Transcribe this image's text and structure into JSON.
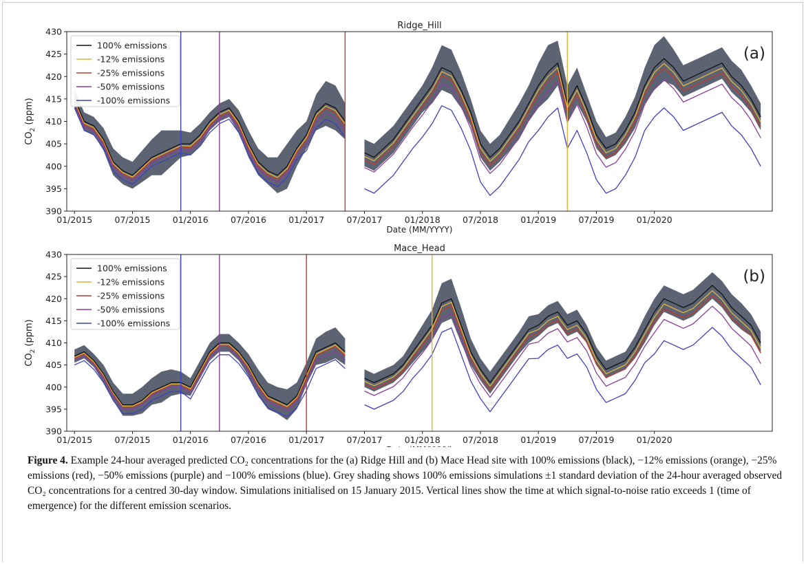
{
  "figure": {
    "caption_label": "Figure 4.",
    "caption_text": "Example 24-hour averaged predicted CO₂ concentrations for the (a) Ridge Hill and (b) Mace Head site with 100% emissions (black), −12% emissions (orange), −25% emissions (red), −50% emissions (purple) and −100% emissions (blue). Grey shading shows 100% emissions simulations ±1 standard deviation of the 24-hour averaged observed CO₂ concentrations for a centred 30-day window. Simulations initialised on 15 January 2015. Vertical lines show the time at which signal-to-noise ratio exceeds 1 (time of emergence) for the different emission scenarios."
  },
  "colors": {
    "band": "#5c6473",
    "s100": "#111111",
    "s12": "#e0b43a",
    "s25": "#c03a30",
    "s50": "#8a3e98",
    "s100neg": "#3f3fc2"
  },
  "chart_data": [
    {
      "type": "line",
      "panel_label": "(a)",
      "title": "Ridge_Hill",
      "xlabel": "Date (MM/YYYY)",
      "ylabel": "CO2 (ppm)",
      "ylim": [
        390,
        430
      ],
      "yticks": [
        390,
        395,
        400,
        405,
        410,
        415,
        420,
        425,
        430
      ],
      "xticks": [
        "01/2015",
        "07/2015",
        "01/2016",
        "07/2016",
        "01/2017",
        "07/2017",
        "01/2018",
        "07/2018",
        "01/2019",
        "07/2019",
        "01/2020"
      ],
      "legend": [
        "100% emissions",
        "-12% emissions",
        "-25% emissions",
        "-50% emissions",
        "-100% emissions"
      ],
      "legend_position": "top-left",
      "grid": false,
      "gap": [
        "2017-06",
        "2017-07"
      ],
      "vlines": [
        {
          "series": "-100% emissions",
          "date": "2015-12"
        },
        {
          "series": "-50% emissions",
          "date": "2016-04"
        },
        {
          "series": "-25% emissions",
          "date": "2017-05"
        },
        {
          "series": "-12% emissions",
          "date": "2019-04"
        }
      ],
      "x": [
        "2015-01",
        "2015-02",
        "2015-03",
        "2015-04",
        "2015-05",
        "2015-06",
        "2015-07",
        "2015-08",
        "2015-09",
        "2015-10",
        "2015-11",
        "2015-12",
        "2016-01",
        "2016-02",
        "2016-03",
        "2016-04",
        "2016-05",
        "2016-06",
        "2016-07",
        "2016-08",
        "2016-09",
        "2016-10",
        "2016-11",
        "2016-12",
        "2017-01",
        "2017-02",
        "2017-03",
        "2017-04",
        "2017-05",
        "2017-07",
        "2017-08",
        "2017-09",
        "2017-10",
        "2017-11",
        "2017-12",
        "2018-01",
        "2018-02",
        "2018-03",
        "2018-04",
        "2018-05",
        "2018-06",
        "2018-07",
        "2018-08",
        "2018-09",
        "2018-10",
        "2018-11",
        "2018-12",
        "2019-01",
        "2019-02",
        "2019-03",
        "2019-04",
        "2019-05",
        "2019-06",
        "2019-07",
        "2019-08",
        "2019-09",
        "2019-10",
        "2019-11",
        "2019-12",
        "2020-01",
        "2020-02",
        "2020-03",
        "2020-04",
        "2020-05",
        "2020-06",
        "2020-07",
        "2020-08",
        "2020-09",
        "2020-10",
        "2020-11",
        "2020-12"
      ],
      "series_y": {
        "100% emissions": [
          415,
          410,
          409,
          406,
          401,
          399,
          398,
          400,
          402,
          403,
          404,
          405,
          405,
          407,
          410,
          412,
          413,
          410,
          405,
          401,
          399,
          398,
          400,
          404,
          407,
          412,
          414,
          413,
          410,
          403,
          402,
          404,
          406,
          409,
          412,
          415,
          418,
          422,
          421,
          417,
          412,
          405,
          402,
          404,
          407,
          410,
          414,
          418,
          421,
          423,
          414,
          418,
          413,
          407,
          404,
          405,
          408,
          412,
          418,
          422,
          424,
          422,
          419,
          420,
          421,
          422,
          423,
          420,
          418,
          415,
          411
        ],
        "-12% emissions": [
          414.6,
          409.6,
          408.6,
          405.6,
          400.6,
          398.6,
          397.6,
          399.6,
          401.6,
          402.6,
          403.6,
          404.6,
          404.5,
          406.5,
          409.5,
          411.5,
          412.5,
          409.5,
          404.5,
          400.5,
          398.5,
          397.5,
          399.5,
          403.5,
          406.4,
          411.4,
          413.4,
          412.4,
          409.4,
          402.2,
          401.2,
          403.2,
          405.2,
          408.2,
          411.2,
          414.1,
          417.1,
          421.1,
          420.1,
          416.1,
          411.1,
          404.1,
          401.1,
          403.1,
          406.1,
          409.1,
          413.1,
          417,
          420,
          422,
          413,
          417,
          412,
          406,
          403,
          404,
          407,
          411,
          417,
          420.9,
          422.9,
          420.9,
          417.9,
          418.9,
          419.9,
          420.9,
          421.9,
          418.9,
          416.9,
          413.9,
          409.9
        ],
        "-25% emissions": [
          414.3,
          409.3,
          408.3,
          405.3,
          400.3,
          398.3,
          397.3,
          399.3,
          401.3,
          402.3,
          403.3,
          404.3,
          404.1,
          406.1,
          409.1,
          411.1,
          412.1,
          409.1,
          404.1,
          400.1,
          398.1,
          397.1,
          399.1,
          403.1,
          405.9,
          410.9,
          412.9,
          411.9,
          408.9,
          401.4,
          400.4,
          402.4,
          404.4,
          407.4,
          410.4,
          413.2,
          416.2,
          420.2,
          419.2,
          415.2,
          410.2,
          403.2,
          400.2,
          402.2,
          405.2,
          408.2,
          412.2,
          416,
          419,
          421,
          412,
          416,
          411,
          405,
          402,
          403,
          406,
          410,
          416,
          419.8,
          421.8,
          419.8,
          416.8,
          417.8,
          418.8,
          419.8,
          420.8,
          417.8,
          415.8,
          412.8,
          408.8
        ],
        "-50% emissions": [
          413.8,
          408.8,
          407.8,
          404.8,
          399.8,
          397.8,
          396.8,
          398.8,
          400.8,
          401.8,
          402.8,
          403.8,
          403.5,
          405.5,
          408.5,
          410.5,
          411.5,
          408.5,
          403.5,
          399.5,
          397.5,
          396.5,
          398.5,
          402.5,
          404.8,
          409.8,
          411.8,
          410.8,
          407.8,
          399.7,
          398.7,
          400.7,
          402.7,
          405.7,
          408.7,
          411.4,
          414.4,
          418.4,
          417.4,
          413.4,
          408.4,
          401.4,
          398.4,
          400.4,
          403.4,
          406.4,
          410.4,
          413.8,
          416.8,
          418.8,
          409.8,
          413.8,
          408.8,
          402.8,
          399.8,
          400.8,
          403.8,
          407.8,
          413.8,
          417.3,
          419.3,
          417.3,
          414.3,
          415.3,
          416.3,
          417.3,
          418.3,
          415.3,
          413.3,
          410.3,
          406.3
        ],
        "-100% emissions": [
          413,
          408,
          407,
          404,
          399,
          397,
          396,
          398,
          400,
          401,
          402,
          403,
          402.5,
          404.5,
          407.5,
          409.5,
          410.5,
          407.5,
          402.5,
          398.5,
          396.5,
          395.5,
          397.5,
          401.5,
          403.5,
          408.5,
          410.5,
          409.5,
          406.5,
          395,
          394,
          396,
          398,
          401,
          404,
          406.5,
          409.5,
          413.5,
          412.5,
          408.5,
          403.5,
          396.5,
          393.5,
          395.5,
          398.5,
          401.5,
          405.5,
          408,
          411,
          413,
          404,
          408,
          403,
          397,
          394,
          395,
          398,
          402,
          408,
          411,
          413,
          411,
          408,
          409,
          410,
          411,
          412,
          409,
          407,
          404,
          400
        ]
      },
      "band_halfwidth_ppm": [
        2,
        2,
        2,
        2.5,
        3,
        3,
        3,
        3.5,
        4,
        5,
        4,
        3,
        2.5,
        2.5,
        2,
        2,
        2,
        2.5,
        3,
        3,
        3,
        4,
        5,
        4,
        3,
        4,
        5,
        5,
        4,
        3,
        3,
        3,
        3,
        3,
        3,
        3,
        4,
        5,
        5,
        4,
        3,
        3,
        3,
        3,
        3.5,
        4,
        4,
        5,
        6,
        5,
        4,
        4,
        3,
        3,
        2.5,
        2.5,
        3,
        3.5,
        4,
        5,
        5,
        4,
        3.5,
        3.5,
        3.5,
        3.5,
        3.5,
        3.5,
        3.5,
        3,
        3
      ]
    },
    {
      "type": "line",
      "panel_label": "(b)",
      "title": "Mace_Head",
      "xlabel": "Date (MM/YYYY)",
      "ylabel": "CO2 (ppm)",
      "ylim": [
        390,
        430
      ],
      "yticks": [
        390,
        395,
        400,
        405,
        410,
        415,
        420,
        425,
        430
      ],
      "xticks": [
        "01/2015",
        "07/2015",
        "01/2016",
        "07/2016",
        "01/2017",
        "07/2017",
        "01/2018",
        "07/2018",
        "01/2019",
        "07/2019",
        "01/2020"
      ],
      "legend": [
        "100% emissions",
        "-12% emissions",
        "-25% emissions",
        "-50% emissions",
        "-100% emissions"
      ],
      "legend_position": "top-left",
      "grid": false,
      "gap": [
        "2017-06",
        "2017-07"
      ],
      "vlines": [
        {
          "series": "-100% emissions",
          "date": "2015-12"
        },
        {
          "series": "-50% emissions",
          "date": "2016-04"
        },
        {
          "series": "-25% emissions",
          "date": "2017-01"
        },
        {
          "series": "-12% emissions",
          "date": "2018-02"
        }
      ],
      "x": [
        "2015-01",
        "2015-02",
        "2015-03",
        "2015-04",
        "2015-05",
        "2015-06",
        "2015-07",
        "2015-08",
        "2015-09",
        "2015-10",
        "2015-11",
        "2015-12",
        "2016-01",
        "2016-02",
        "2016-03",
        "2016-04",
        "2016-05",
        "2016-06",
        "2016-07",
        "2016-08",
        "2016-09",
        "2016-10",
        "2016-11",
        "2016-12",
        "2017-01",
        "2017-02",
        "2017-03",
        "2017-04",
        "2017-05",
        "2017-07",
        "2017-08",
        "2017-09",
        "2017-10",
        "2017-11",
        "2017-12",
        "2018-01",
        "2018-02",
        "2018-03",
        "2018-04",
        "2018-05",
        "2018-06",
        "2018-07",
        "2018-08",
        "2018-09",
        "2018-10",
        "2018-11",
        "2018-12",
        "2019-01",
        "2019-02",
        "2019-03",
        "2019-04",
        "2019-05",
        "2019-06",
        "2019-07",
        "2019-08",
        "2019-09",
        "2019-10",
        "2019-11",
        "2019-12",
        "2020-01",
        "2020-02",
        "2020-03",
        "2020-04",
        "2020-05",
        "2020-06",
        "2020-07",
        "2020-08",
        "2020-09",
        "2020-10",
        "2020-11",
        "2020-12"
      ],
      "series_y": {
        "100% emissions": [
          407,
          408,
          406,
          403,
          399,
          396,
          396,
          397,
          399,
          400,
          401,
          401,
          400,
          404,
          408,
          410,
          410,
          408,
          405,
          401,
          398,
          397,
          396,
          398,
          403,
          408,
          409,
          410,
          408,
          402,
          401,
          402,
          403,
          405,
          408,
          411,
          414,
          419,
          420,
          414,
          408,
          404,
          401,
          404,
          407,
          410,
          413,
          414,
          416,
          417,
          414,
          415,
          412,
          407,
          404,
          405,
          406,
          409,
          413,
          417,
          420,
          419,
          418,
          419,
          421,
          423,
          421,
          418,
          416,
          414,
          410
        ],
        "-12% emissions": [
          406.7,
          407.7,
          405.7,
          402.7,
          398.7,
          395.7,
          395.7,
          396.7,
          398.7,
          399.7,
          400.7,
          400.7,
          399.6,
          403.6,
          407.6,
          409.6,
          409.6,
          407.6,
          404.6,
          400.6,
          397.6,
          396.6,
          395.6,
          397.6,
          402.5,
          407.5,
          408.5,
          409.5,
          407.5,
          401.3,
          400.3,
          401.3,
          402.3,
          404.3,
          407.3,
          410.2,
          413.2,
          418.2,
          419.2,
          413.2,
          407.2,
          403.2,
          400.2,
          403.2,
          406.2,
          409.2,
          412.2,
          413,
          415,
          416,
          413,
          414,
          411,
          406,
          403,
          404,
          405,
          408,
          412,
          415.8,
          418.8,
          417.8,
          416.8,
          417.8,
          419.8,
          421.8,
          419.8,
          416.8,
          414.8,
          412.8,
          408.8
        ],
        "-25% emissions": [
          406.5,
          407.5,
          405.5,
          402.5,
          398.5,
          395.5,
          395.5,
          396.5,
          398.5,
          399.5,
          400.5,
          400.5,
          399.3,
          403.3,
          407.3,
          409.3,
          409.3,
          407.3,
          404.3,
          400.3,
          397.3,
          396.3,
          395.3,
          397.3,
          402.1,
          407.1,
          408.1,
          409.1,
          407.1,
          400.6,
          399.6,
          400.6,
          401.6,
          403.6,
          406.6,
          409.4,
          412.4,
          417.4,
          418.4,
          412.4,
          406.4,
          402.4,
          399.4,
          402.4,
          405.4,
          408.4,
          411.4,
          412.1,
          414.1,
          415.1,
          412.1,
          413.1,
          410.1,
          405.1,
          402.1,
          403.1,
          404.1,
          407.1,
          411.1,
          414.7,
          417.7,
          416.7,
          415.7,
          416.7,
          418.7,
          420.7,
          418.7,
          415.7,
          413.7,
          411.7,
          407.7
        ],
        "-50% emissions": [
          406,
          407,
          405,
          402,
          398,
          395,
          395,
          396,
          398,
          399,
          400,
          400,
          398.6,
          402.6,
          406.6,
          408.6,
          408.6,
          406.6,
          403.6,
          399.6,
          396.6,
          395.6,
          394.6,
          396.6,
          401.1,
          406.1,
          407.1,
          408.1,
          406.1,
          399.1,
          398.1,
          399.1,
          400.1,
          402.1,
          405.1,
          407.7,
          410.7,
          415.7,
          416.7,
          410.7,
          404.7,
          400.7,
          397.7,
          400.7,
          403.7,
          406.7,
          409.7,
          410.2,
          412.2,
          413.2,
          410.2,
          411.2,
          408.2,
          403.2,
          400.2,
          401.2,
          402.2,
          405.2,
          409.2,
          412.3,
          415.3,
          414.3,
          413.3,
          414.3,
          416.3,
          418.3,
          416.3,
          413.3,
          411.3,
          409.3,
          405.3
        ],
        "-100% emissions": [
          405,
          406,
          404,
          401,
          397,
          394,
          394,
          395,
          397,
          398,
          399,
          399,
          397.3,
          401.3,
          405.3,
          407.3,
          407.3,
          405.3,
          402.3,
          398.3,
          395.3,
          394.3,
          393.3,
          395.3,
          399.2,
          404.2,
          405.2,
          406.2,
          404.2,
          396,
          395,
          396,
          397,
          399,
          402,
          404.4,
          407.4,
          412.4,
          413.4,
          407.4,
          401.4,
          397.4,
          394.4,
          397.4,
          400.4,
          403.4,
          406.4,
          406.5,
          408.5,
          409.5,
          406.5,
          407.5,
          404.5,
          399.5,
          396.5,
          397.5,
          398.5,
          401.5,
          405.5,
          407.5,
          410.5,
          409.5,
          408.5,
          409.5,
          411.5,
          413.5,
          411.5,
          408.5,
          406.5,
          404.5,
          400.5
        ]
      },
      "band_halfwidth_ppm": [
        1.5,
        1.5,
        1.5,
        2,
        2,
        2.5,
        2.5,
        3,
        3,
        3.5,
        3,
        2.5,
        2,
        2,
        2,
        2,
        2,
        2,
        2.5,
        3,
        3,
        3,
        3.5,
        3,
        2.5,
        3,
        3.5,
        3.5,
        3,
        2,
        2,
        2,
        2,
        2,
        2.5,
        3,
        3.5,
        4.5,
        4.5,
        4,
        3,
        2.5,
        2.5,
        2.5,
        2.5,
        2.5,
        3,
        2.5,
        2.5,
        2.5,
        2.5,
        2.5,
        2,
        2,
        2,
        2,
        2,
        2.5,
        3,
        3,
        3,
        3,
        3,
        3,
        3,
        3,
        3,
        3,
        3,
        2.5,
        2.5
      ]
    }
  ]
}
